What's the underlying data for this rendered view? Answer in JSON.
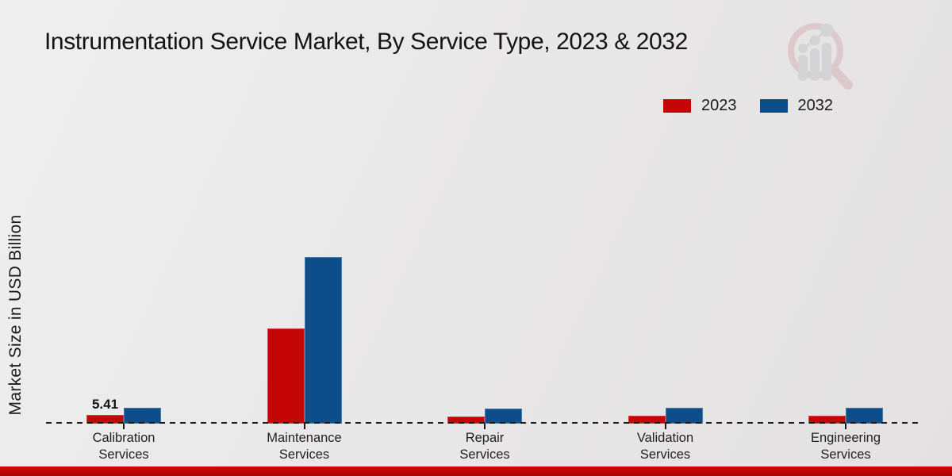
{
  "title": "Instrumentation Service Market, By Service Type, 2023 & 2032",
  "y_axis_label": "Market Size in USD Billion",
  "legend": {
    "position": "top-right",
    "items": [
      {
        "label": "2023",
        "color": "#c40606"
      },
      {
        "label": "2032",
        "color": "#0c4d8a"
      }
    ]
  },
  "watermark": {
    "name": "magnifier-bar-chart-logo",
    "ring_color": "#cf9ba3",
    "glyph_color": "#b7bac3"
  },
  "footer_bar_color": "#c30505",
  "chart_data": {
    "type": "bar",
    "title": "Instrumentation Service Market, By Service Type, 2023 & 2032",
    "xlabel": "",
    "ylabel": "Market Size in USD Billion",
    "categories": [
      "Calibration Services",
      "Maintenance Services",
      "Repair Services",
      "Validation Services",
      "Engineering Services"
    ],
    "series": [
      {
        "name": "2023",
        "color": "#c40606",
        "values": [
          5.41,
          60.5,
          4.7,
          5.1,
          5.1
        ]
      },
      {
        "name": "2032",
        "color": "#0c4d8a",
        "values": [
          10.2,
          106.0,
          9.7,
          10.2,
          9.9
        ]
      }
    ],
    "annotations": [
      {
        "category": "Calibration Services",
        "series": "2023",
        "text": "5.41"
      }
    ],
    "axis": {
      "baseline_style": "dashed-black",
      "y_tick_labels_visible": false,
      "grid": false
    },
    "legend_position": "top-right",
    "units": "USD Billion"
  }
}
